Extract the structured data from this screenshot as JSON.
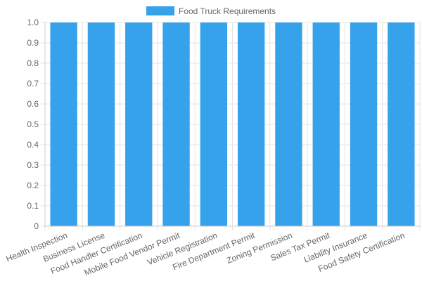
{
  "chart_data": {
    "type": "bar",
    "categories": [
      "Health Inspection",
      "Business License",
      "Food Handler Certification",
      "Mobile Food Vendor Permit",
      "Vehicle Registration",
      "Fire Department Permit",
      "Zoning Permission",
      "Sales Tax Permit",
      "Liability Insurance",
      "Food Safety Certification"
    ],
    "series": [
      {
        "name": "Food Truck Requirements",
        "values": [
          1,
          1,
          1,
          1,
          1,
          1,
          1,
          1,
          1,
          1
        ],
        "color": "#36a2eb"
      }
    ],
    "ylim": [
      0,
      1
    ],
    "yticks": [
      "0",
      "0.1",
      "0.2",
      "0.3",
      "0.4",
      "0.5",
      "0.6",
      "0.7",
      "0.8",
      "0.9",
      "1.0"
    ],
    "grid": true,
    "legend_position": "top"
  }
}
